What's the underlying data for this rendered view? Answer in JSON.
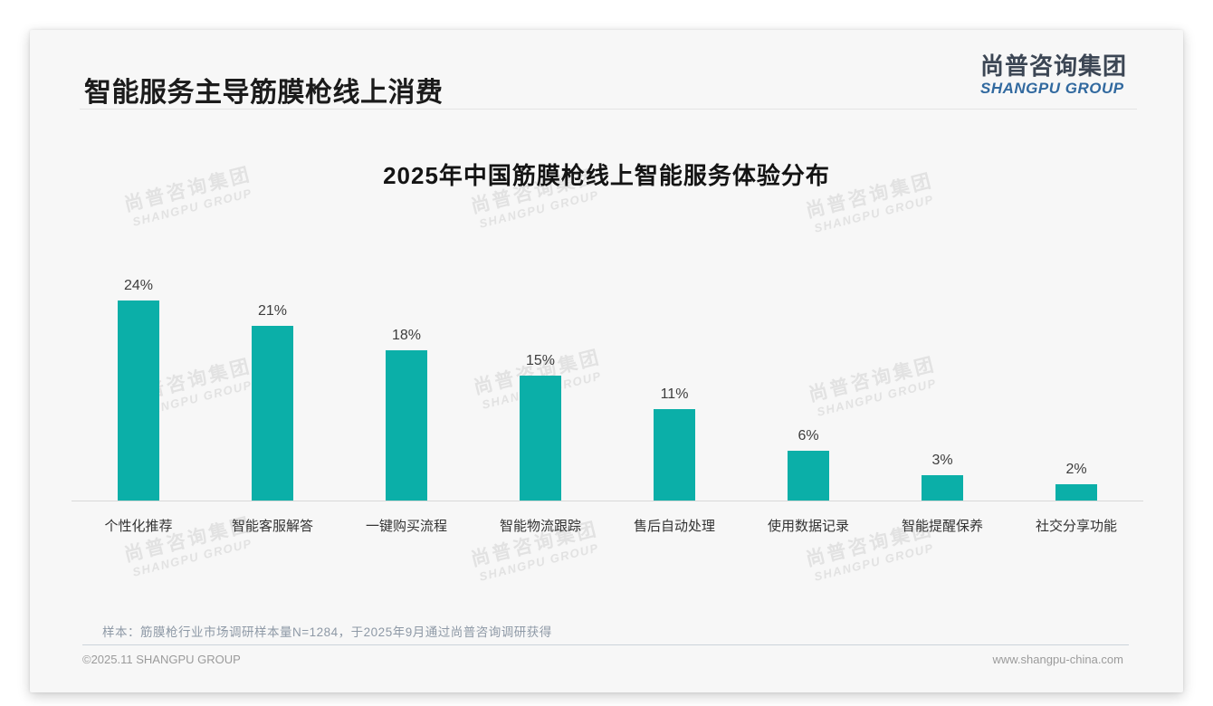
{
  "brand": {
    "teal": "#0bafa8",
    "logo_blue": "#31699f",
    "logo_dark": "#3c4654"
  },
  "header": {
    "title": "智能服务主导筋膜枪线上消费",
    "logo_cn": "尚普咨询集团",
    "logo_en": "SHANGPU GROUP"
  },
  "chart_data": {
    "type": "bar",
    "title": "2025年中国筋膜枪线上智能服务体验分布",
    "categories": [
      "个性化推荐",
      "智能客服解答",
      "一键购买流程",
      "智能物流跟踪",
      "售后自动处理",
      "使用数据记录",
      "智能提醒保养",
      "社交分享功能"
    ],
    "values": [
      24,
      21,
      18,
      15,
      11,
      6,
      3,
      2
    ],
    "unit": "%",
    "value_labels": [
      "24%",
      "21%",
      "18%",
      "15%",
      "11%",
      "6%",
      "3%",
      "2%"
    ],
    "bar_color": "#0bafa8",
    "xlabel": "",
    "ylabel": "",
    "ylim": [
      0,
      26
    ],
    "grid": false,
    "legend": "none",
    "value_label_position": "above-bars"
  },
  "note": {
    "text": "样本：筋膜枪行业市场调研样本量N=1284，于2025年9月通过尚普咨询调研获得"
  },
  "footer": {
    "copyright": "©2025.11 SHANGPU GROUP",
    "website": "www.shangpu-china.com"
  },
  "watermark": {
    "line1": "尚普咨询集团",
    "line2": "SHANGPU GROUP"
  }
}
